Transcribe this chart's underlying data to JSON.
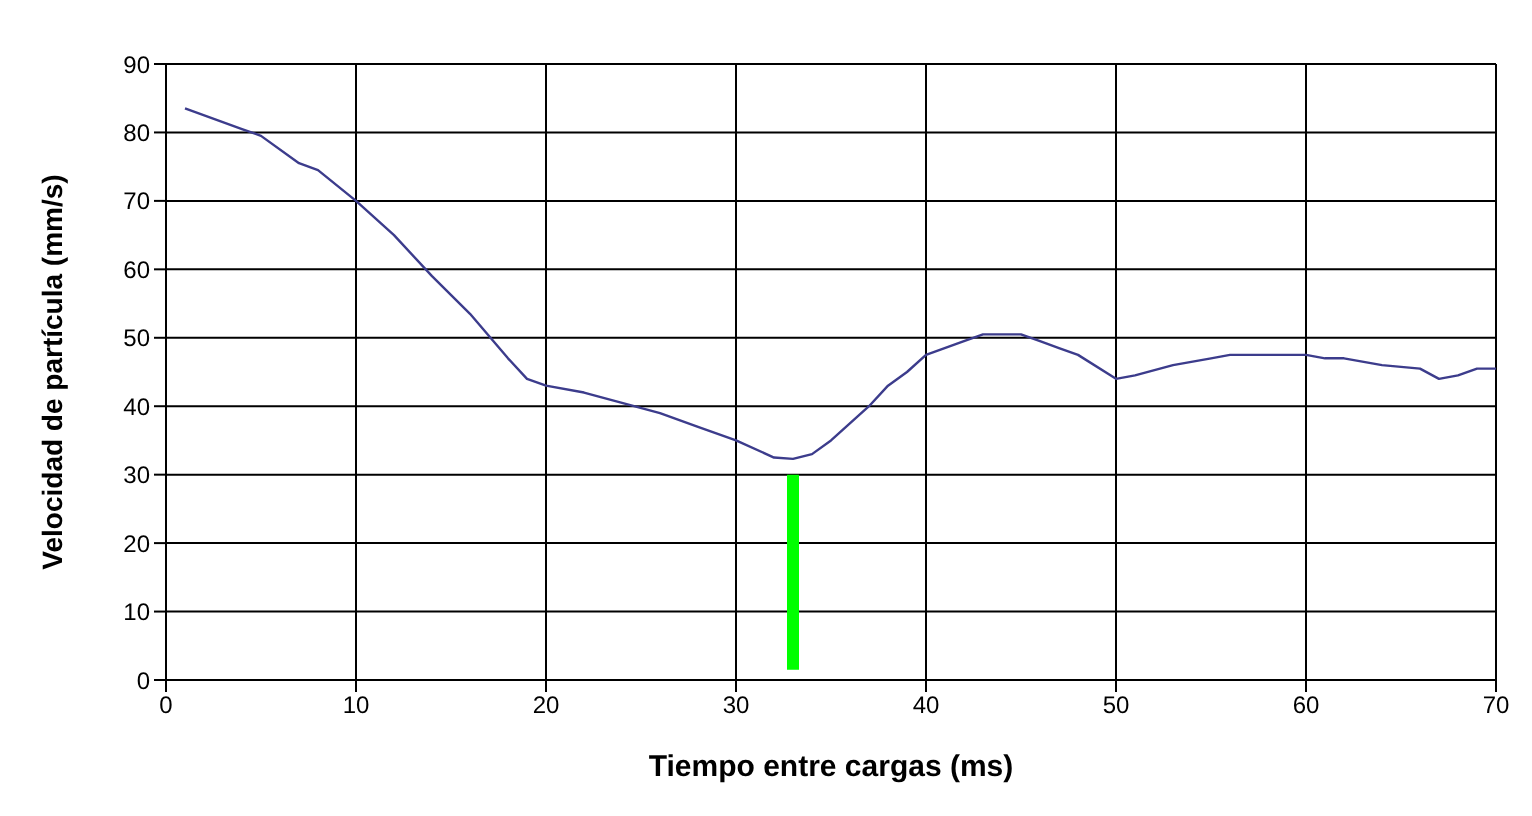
{
  "chart_data": {
    "type": "line",
    "xlabel": "Tiempo entre cargas (ms)",
    "ylabel": "Velocidad de partícula (mm/s)",
    "xlim": [
      0,
      70
    ],
    "xticks": [
      0,
      10,
      20,
      30,
      40,
      50,
      60,
      70
    ],
    "ylim": [
      0,
      90
    ],
    "yticks": [
      0,
      10,
      20,
      30,
      40,
      50,
      60,
      70,
      80,
      90
    ],
    "grid": true,
    "marker": "none",
    "series": [
      {
        "color": "#3c3c8c",
        "x": [
          1,
          4,
          5,
          7,
          8,
          10,
          12,
          14,
          16,
          18,
          19,
          20,
          22,
          24,
          26,
          28,
          30,
          32,
          33,
          34,
          35,
          37,
          38,
          39,
          40,
          42,
          43,
          45,
          46,
          47,
          48,
          50,
          51,
          53,
          55,
          56,
          60,
          61,
          62,
          64,
          66,
          67,
          68,
          69,
          70
        ],
        "values": [
          83.5,
          80.5,
          79.5,
          75.5,
          74.5,
          70,
          65,
          59,
          53.5,
          47,
          44,
          43,
          42,
          40.5,
          39,
          37,
          35,
          32.5,
          32.3,
          33,
          35,
          40,
          43,
          45,
          47.5,
          49.5,
          50.5,
          50.5,
          49.5,
          48.5,
          47.5,
          44,
          44.5,
          46,
          47,
          47.5,
          47.5,
          47,
          47,
          46,
          45.5,
          44,
          44.5,
          45.5,
          45.5
        ]
      },
      {
        "color": "#00ff00",
        "x": [
          33,
          33
        ],
        "values": [
          1.5,
          30
        ]
      }
    ]
  }
}
